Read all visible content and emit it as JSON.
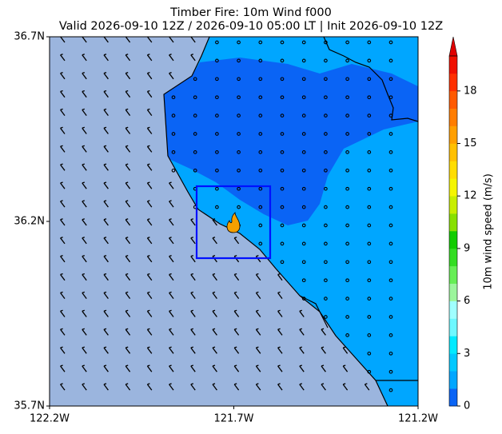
{
  "chart_data": {
    "type": "contour",
    "title": "Timber Fire: 10m Wind f000",
    "subtitle": "Valid 2026-09-10 12Z / 2026-09-10 05:00 LT | Init 2026-09-10 12Z",
    "xlim": [
      -122.2,
      -121.2
    ],
    "ylim": [
      35.7,
      36.7
    ],
    "xticks": [
      {
        "value": -122.2,
        "label": "122.2W"
      },
      {
        "value": -121.7,
        "label": "121.7W"
      },
      {
        "value": -121.2,
        "label": "121.2W"
      }
    ],
    "yticks": [
      {
        "value": 35.7,
        "label": "35.7N"
      },
      {
        "value": 36.2,
        "label": "36.2N"
      },
      {
        "value": 36.7,
        "label": "36.7N"
      }
    ],
    "colorbar": {
      "label": "10m wind speed (m/s)",
      "lim": [
        0,
        20
      ],
      "ticks": [
        0,
        3,
        6,
        9,
        12,
        15,
        18
      ],
      "colors": [
        "#0a64f5",
        "#00a6ff",
        "#00c8ff",
        "#00eaff",
        "#6ef8ff",
        "#a0ffff",
        "#9cf59c",
        "#66ee55",
        "#33dd22",
        "#11cc00",
        "#88e000",
        "#c8ee00",
        "#f5f500",
        "#ffdd00",
        "#ffc000",
        "#ff9f00",
        "#ff7d00",
        "#ff5a00",
        "#ff3000",
        "#f01000"
      ],
      "extend_color": "#e00000"
    }
  }
}
